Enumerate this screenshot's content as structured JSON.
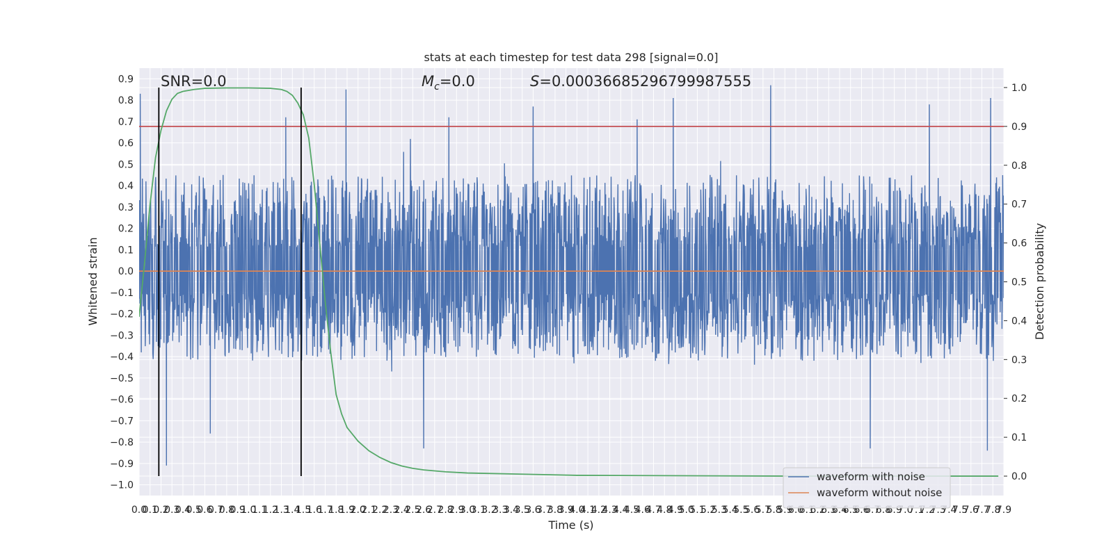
{
  "chart_data": {
    "type": "line",
    "title": "stats at each timestep for test data 298 [signal=0.0]",
    "xlabel": "Time (s)",
    "ylabel_left": "Whitened strain",
    "ylabel_right": "Detection probability",
    "xlim": [
      0.0,
      7.9
    ],
    "ylim_left": [
      -1.05,
      0.95
    ],
    "ylim_right": [
      -0.05,
      1.05
    ],
    "grid": true,
    "legend_position": "lower-right",
    "x_ticks": [
      "0.0",
      "0.1",
      "0.2",
      "0.3",
      "0.4",
      "0.5",
      "0.6",
      "0.7",
      "0.8",
      "0.9",
      "1.0",
      "1.1",
      "1.2",
      "1.3",
      "1.4",
      "1.5",
      "1.6",
      "1.7",
      "1.8",
      "1.9",
      "2.0",
      "2.1",
      "2.2",
      "2.3",
      "2.4",
      "2.5",
      "2.6",
      "2.7",
      "2.8",
      "2.9",
      "3.0",
      "3.1",
      "3.2",
      "3.3",
      "3.4",
      "3.5",
      "3.6",
      "3.7",
      "3.8",
      "3.9",
      "4.0",
      "4.1",
      "4.2",
      "4.3",
      "4.4",
      "4.5",
      "4.6",
      "4.7",
      "4.8",
      "4.9",
      "5.0",
      "5.1",
      "5.2",
      "5.3",
      "5.4",
      "5.5",
      "5.6",
      "5.7",
      "5.8",
      "5.9",
      "6.0",
      "6.1",
      "6.2",
      "6.3",
      "6.4",
      "6.5",
      "6.6",
      "6.7",
      "6.8",
      "6.9",
      "7.0",
      "7.1",
      "7.2",
      "7.3",
      "7.4",
      "7.5",
      "7.6",
      "7.7",
      "7.8",
      "7.9"
    ],
    "y_ticks_left": [
      "0.9",
      "0.8",
      "0.7",
      "0.6",
      "0.5",
      "0.4",
      "0.3",
      "0.2",
      "0.1",
      "0.0",
      "−0.1",
      "−0.2",
      "−0.3",
      "−0.4",
      "−0.5",
      "−0.6",
      "−0.7",
      "−0.8",
      "−0.9",
      "−1.0"
    ],
    "y_ticks_right": [
      "1.0",
      "0.9",
      "0.8",
      "0.7",
      "0.6",
      "0.5",
      "0.4",
      "0.3",
      "0.2",
      "0.1",
      "0.0"
    ],
    "annotations": {
      "snr": "SNR=0.0",
      "mc_symbol": "M",
      "mc_subscript": "c",
      "mc_value": "=0.0",
      "s_symbol": "S",
      "s_value": "=0.00036685296799987555"
    },
    "threshold_probability": 0.9,
    "vertical_lines_x": [
      0.18,
      1.48
    ],
    "noise_envelope": {
      "typical_max": 0.45,
      "typical_min": -0.42,
      "peaks": [
        {
          "x": 0.01,
          "y": 0.83
        },
        {
          "x": 0.25,
          "y": -0.91
        },
        {
          "x": 0.65,
          "y": -0.76
        },
        {
          "x": 1.34,
          "y": 0.72
        },
        {
          "x": 1.89,
          "y": 0.85
        },
        {
          "x": 2.6,
          "y": -0.83
        },
        {
          "x": 2.83,
          "y": 0.72
        },
        {
          "x": 3.6,
          "y": 0.77
        },
        {
          "x": 4.55,
          "y": 0.71
        },
        {
          "x": 4.88,
          "y": 0.81
        },
        {
          "x": 5.77,
          "y": 0.87
        },
        {
          "x": 6.68,
          "y": -0.83
        },
        {
          "x": 7.22,
          "y": 0.78
        },
        {
          "x": 7.78,
          "y": 0.81
        },
        {
          "x": 7.75,
          "y": -0.84
        }
      ]
    },
    "series": [
      {
        "name": "waveform with noise",
        "color": "#4c72b0",
        "axis": "left",
        "style": "dense-noise"
      },
      {
        "name": "waveform without noise",
        "color": "#dd8452",
        "axis": "left",
        "x": [
          0.0,
          7.9
        ],
        "y": [
          0.0,
          0.0
        ]
      },
      {
        "axis": "right",
        "color": "#55a868",
        "x": [
          0.0,
          0.05,
          0.1,
          0.15,
          0.2,
          0.25,
          0.3,
          0.35,
          0.4,
          0.5,
          0.6,
          0.8,
          1.0,
          1.2,
          1.3,
          1.35,
          1.4,
          1.45,
          1.5,
          1.55,
          1.6,
          1.65,
          1.7,
          1.75,
          1.8,
          1.85,
          1.9,
          2.0,
          2.1,
          2.2,
          2.3,
          2.4,
          2.5,
          2.6,
          2.8,
          3.0,
          3.5,
          4.0,
          5.0,
          6.0,
          7.0,
          7.85
        ],
        "y": [
          0.41,
          0.55,
          0.7,
          0.82,
          0.89,
          0.94,
          0.97,
          0.985,
          0.99,
          0.995,
          0.998,
          0.999,
          0.999,
          0.998,
          0.995,
          0.99,
          0.98,
          0.96,
          0.93,
          0.87,
          0.75,
          0.6,
          0.45,
          0.32,
          0.21,
          0.16,
          0.125,
          0.09,
          0.065,
          0.048,
          0.035,
          0.026,
          0.02,
          0.016,
          0.011,
          0.008,
          0.005,
          0.002,
          0.001,
          0.0,
          0.0,
          0.0
        ]
      }
    ],
    "colors": {
      "plot_background": "#eaeaf2",
      "grid": "#ffffff",
      "threshold": "#c44e52",
      "vertical_lines": "#000000"
    }
  }
}
